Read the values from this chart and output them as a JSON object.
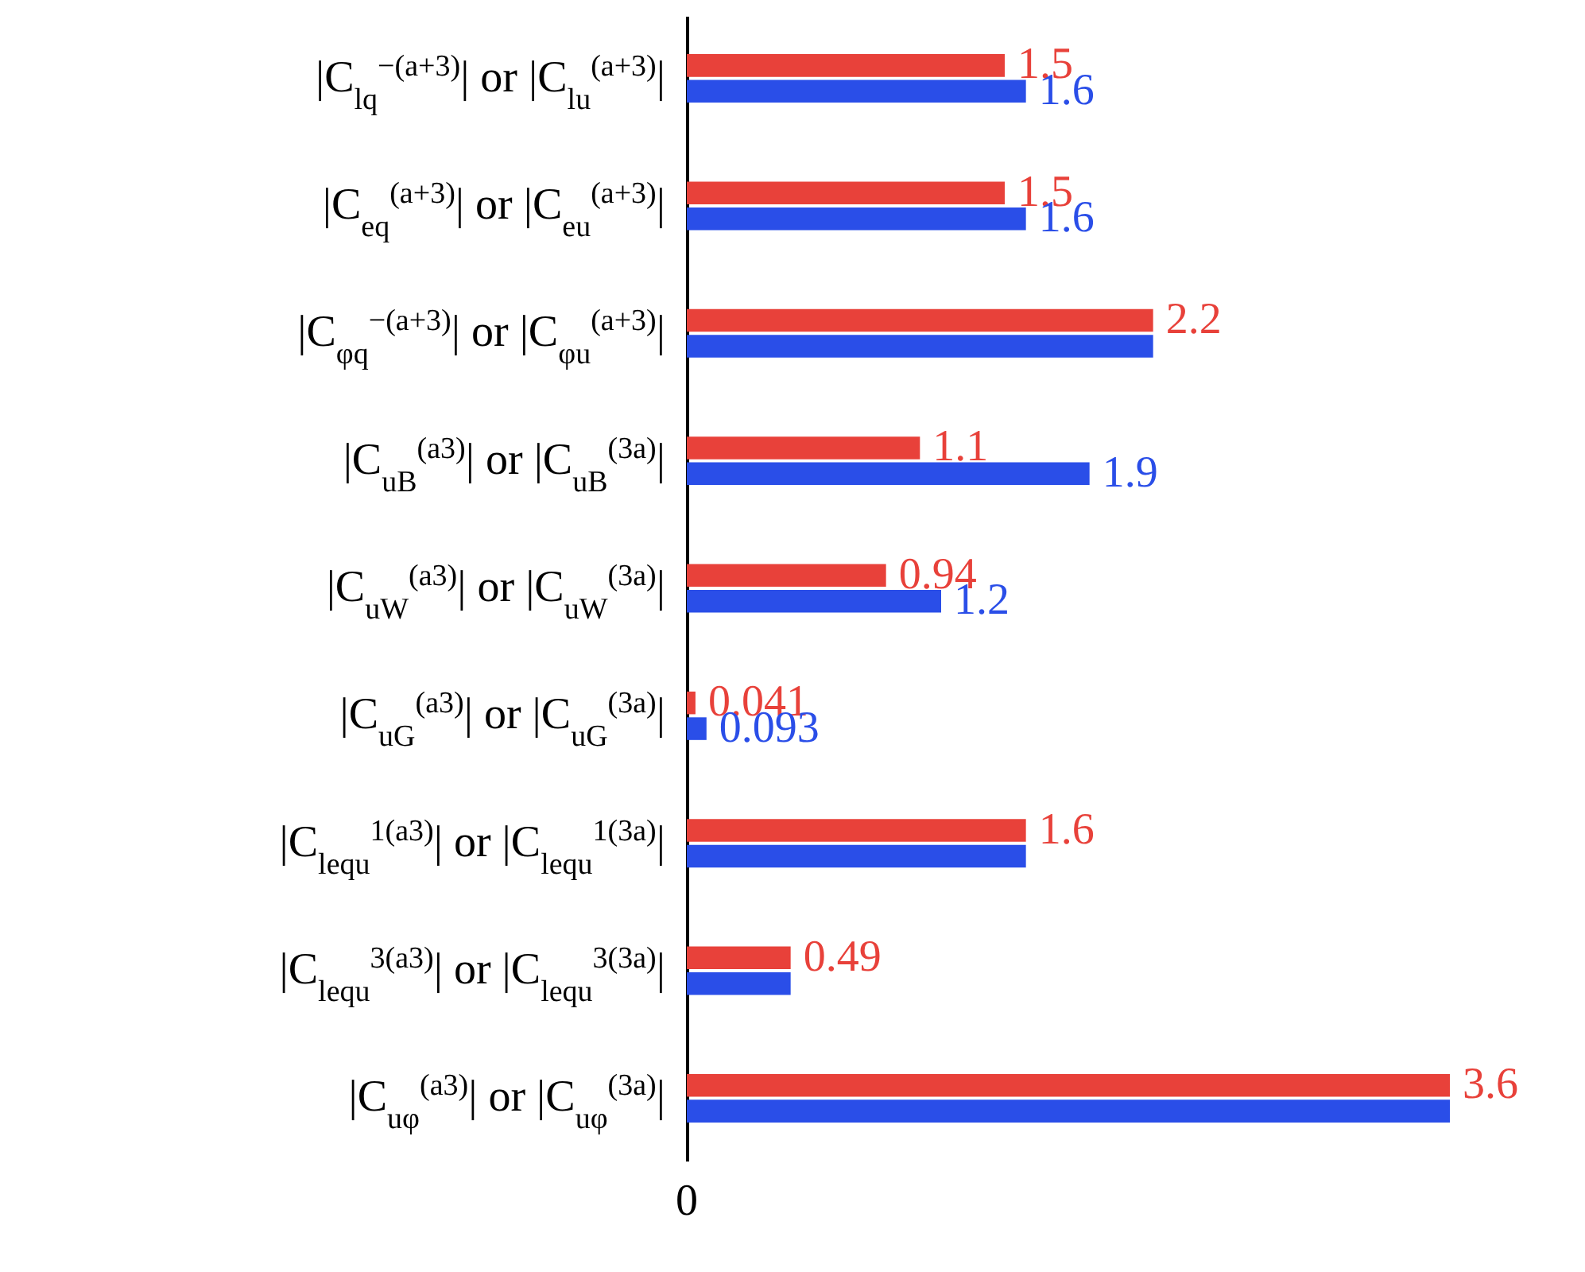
{
  "chart_data": {
    "type": "bar",
    "orientation": "horizontal",
    "categories": [
      "|C$_{lq}$$^{−(a+3)}$| or |C$_{lu}$$^{(a+3)}$|",
      "|C$_{eq}$$^{(a+3)}$| or |C$_{eu}$$^{(a+3)}$|",
      "|C$_{φq}$$^{−(a+3)}$| or |C$_{φu}$$^{(a+3)}$|",
      "|C$_{uB}$$^{(a3)}$| or |C$_{uB}$$^{(3a)}$|",
      "|C$_{uW}$$^{(a3)}$| or |C$_{uW}$$^{(3a)}$|",
      "|C$_{uG}$$^{(a3)}$| or |C$_{uG}$$^{(3a)}$|",
      "|C$_{lequ}$$^{1(a3)}$| or |C$_{lequ}$$^{1(3a)}$|",
      "|C$_{lequ}$$^{3(a3)}$| or |C$_{lequ}$$^{3(3a)}$|",
      "|C$_{uφ}$$^{(a3)}$| or |C$_{uφ}$$^{(3a)}$|"
    ],
    "series": [
      {
        "color": "#e8413a",
        "values": [
          1.5,
          1.5,
          2.2,
          1.1,
          0.94,
          0.041,
          1.6,
          0.49,
          3.6
        ],
        "value_labels": [
          "1.5",
          "1.5",
          "2.2",
          "1.1",
          "0.94",
          "0.041",
          "1.6",
          "0.49",
          "3.6"
        ]
      },
      {
        "color": "#2a4ee8",
        "values": [
          1.6,
          1.6,
          2.2,
          1.9,
          1.2,
          0.093,
          1.6,
          0.49,
          3.6
        ],
        "value_labels": [
          "1.6",
          "1.6",
          null,
          "1.9",
          "1.2",
          "0.093",
          null,
          null,
          null
        ]
      }
    ],
    "annotations": [
      "0"
    ]
  }
}
